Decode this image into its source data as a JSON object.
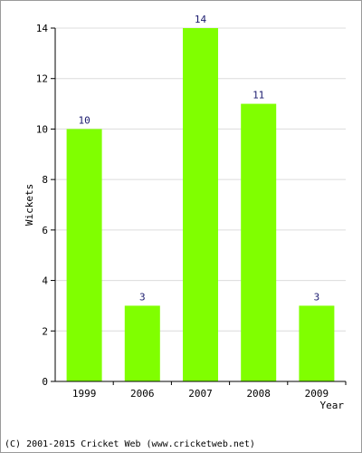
{
  "chart_data": {
    "type": "bar",
    "categories": [
      "1999",
      "2006",
      "2007",
      "2008",
      "2009"
    ],
    "values": [
      10,
      3,
      14,
      11,
      3
    ],
    "data_labels": [
      "10",
      "3",
      "14",
      "11",
      "3"
    ],
    "title": "",
    "xlabel": "Year",
    "ylabel": "Wickets",
    "ylim": [
      0,
      14
    ],
    "yticks": [
      "0",
      "2",
      "4",
      "6",
      "8",
      "10",
      "12",
      "14"
    ],
    "grid": true,
    "bar_color": "#80ff00"
  },
  "footer": {
    "credit": "(C) 2001-2015 Cricket Web (www.cricketweb.net)"
  }
}
